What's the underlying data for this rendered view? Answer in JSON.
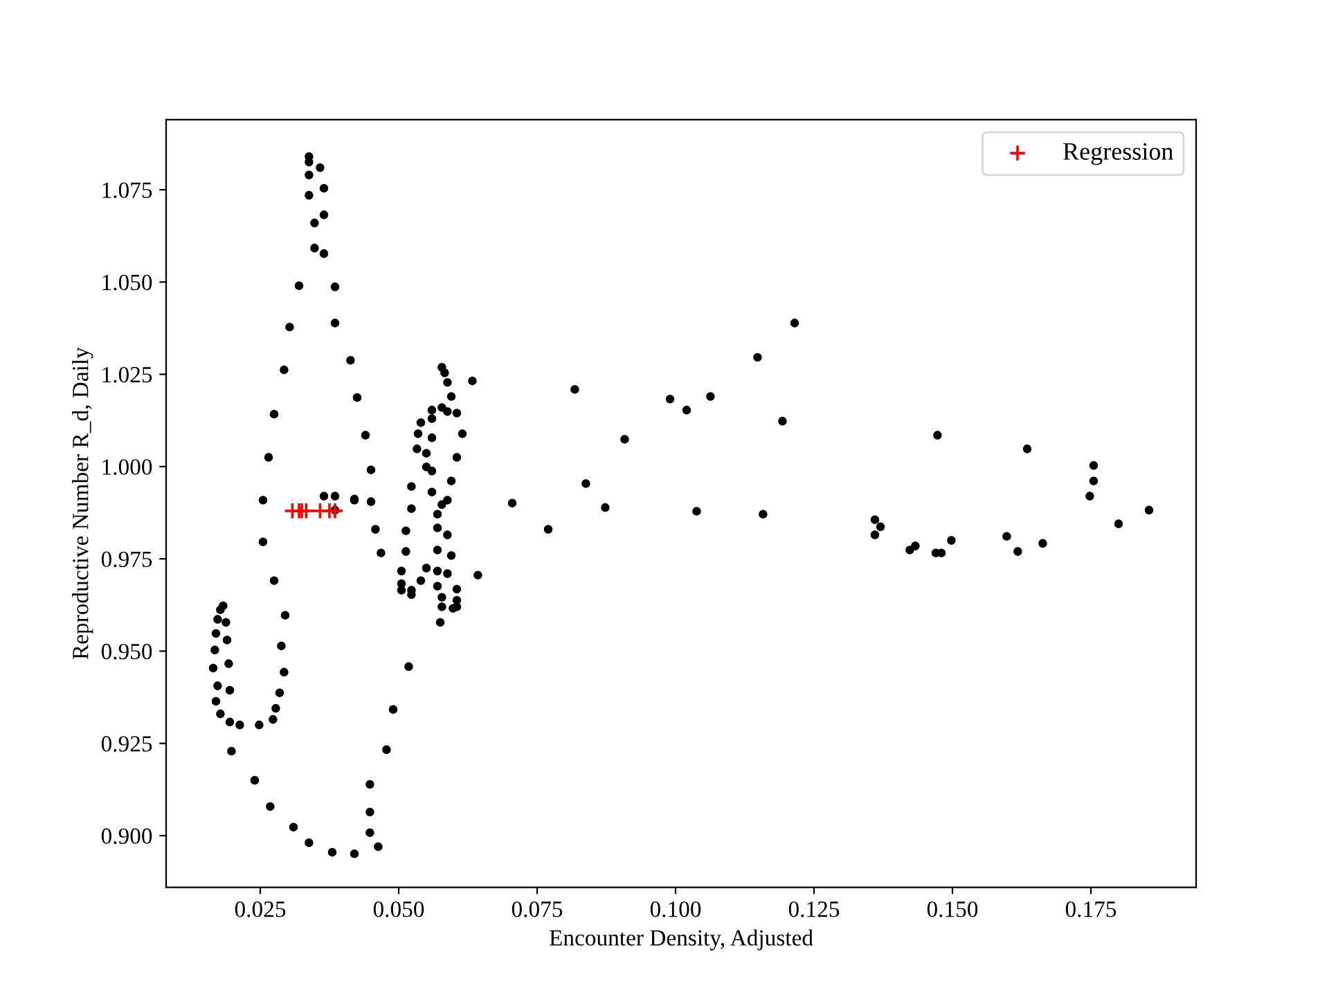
{
  "chart_data": {
    "type": "scatter",
    "xlabel": "Encounter Density, Adjusted",
    "ylabel": "Reproductive Number R_d, Daily",
    "xlim": [
      0.008,
      0.194
    ],
    "ylim": [
      0.886,
      1.094
    ],
    "xticks": [
      {
        "value": 0.025,
        "label": "0.025"
      },
      {
        "value": 0.05,
        "label": "0.050"
      },
      {
        "value": 0.075,
        "label": "0.075"
      },
      {
        "value": 0.1,
        "label": "0.100"
      },
      {
        "value": 0.125,
        "label": "0.125"
      },
      {
        "value": 0.15,
        "label": "0.150"
      },
      {
        "value": 0.175,
        "label": "0.175"
      }
    ],
    "yticks": [
      {
        "value": 0.9,
        "label": "0.900"
      },
      {
        "value": 0.925,
        "label": "0.925"
      },
      {
        "value": 0.95,
        "label": "0.950"
      },
      {
        "value": 0.975,
        "label": "0.975"
      },
      {
        "value": 1.0,
        "label": "1.000"
      },
      {
        "value": 1.025,
        "label": "1.025"
      },
      {
        "value": 1.05,
        "label": "1.050"
      },
      {
        "value": 1.075,
        "label": "1.075"
      }
    ],
    "grid": false,
    "legend": "top right",
    "series": [
      {
        "color": "#000000",
        "marker": "circle",
        "x": [
          0.0338,
          0.0338,
          0.0358,
          0.0338,
          0.0365,
          0.0338,
          0.0365,
          0.0348,
          0.0348,
          0.0365,
          0.032,
          0.0385,
          0.0303,
          0.0385,
          0.0413,
          0.0293,
          0.0425,
          0.0275,
          0.0265,
          0.044,
          0.045,
          0.042,
          0.045,
          0.0458,
          0.0468,
          0.0505,
          0.0505,
          0.0505,
          0.0523,
          0.0523,
          0.0518,
          0.049,
          0.0478,
          0.0448,
          0.0448,
          0.0448,
          0.0463,
          0.042,
          0.0578,
          0.0583,
          0.0588,
          0.0633,
          0.0595,
          0.056,
          0.0578,
          0.0588,
          0.0605,
          0.056,
          0.054,
          0.0535,
          0.056,
          0.0615,
          0.0533,
          0.055,
          0.0605,
          0.055,
          0.056,
          0.0595,
          0.0523,
          0.056,
          0.0588,
          0.0578,
          0.0523,
          0.057,
          0.057,
          0.0588,
          0.0513,
          0.0513,
          0.057,
          0.0595,
          0.055,
          0.057,
          0.0588,
          0.0643,
          0.054,
          0.057,
          0.0605,
          0.0578,
          0.0605,
          0.0578,
          0.0598,
          0.0605,
          0.0575,
          0.0255,
          0.0365,
          0.0385,
          0.0385,
          0.042,
          0.0255,
          0.0275,
          0.0183,
          0.0178,
          0.0188,
          0.0173,
          0.017,
          0.019,
          0.0168,
          0.0165,
          0.0193,
          0.0295,
          0.0288,
          0.0293,
          0.0173,
          0.0195,
          0.0285,
          0.017,
          0.0278,
          0.0178,
          0.0195,
          0.0213,
          0.0248,
          0.0273,
          0.0198,
          0.024,
          0.0268,
          0.031,
          0.0338,
          0.038,
          0.1215,
          0.1148,
          0.0818,
          0.099,
          0.102,
          0.1063,
          0.1193,
          0.0908,
          0.0838,
          0.0705,
          0.077,
          0.0873,
          0.1038,
          0.1158,
          0.1473,
          0.1635,
          0.1755,
          0.1755,
          0.1748,
          0.1855,
          0.18,
          0.136,
          0.137,
          0.136,
          0.1423,
          0.1433,
          0.147,
          0.148,
          0.1498,
          0.1598,
          0.1618,
          0.1663
        ],
        "values": [
          1.084,
          1.0825,
          1.081,
          1.079,
          1.0754,
          1.0735,
          1.0682,
          1.066,
          1.0592,
          1.0577,
          1.049,
          1.0487,
          1.0378,
          1.0389,
          1.0288,
          1.0262,
          1.0187,
          1.0142,
          1.0025,
          1.0085,
          0.9991,
          0.9912,
          0.9905,
          0.983,
          0.9766,
          0.9717,
          0.9683,
          0.9665,
          0.9665,
          0.9653,
          0.9458,
          0.9342,
          0.9233,
          0.9139,
          0.9064,
          0.9008,
          0.897,
          0.8951,
          1.0269,
          1.0254,
          1.0228,
          1.0232,
          1.019,
          1.0153,
          1.016,
          1.0149,
          1.0145,
          1.013,
          1.0119,
          1.0089,
          1.0078,
          1.0089,
          1.0048,
          1.0036,
          1.0025,
          0.9999,
          0.9988,
          0.9961,
          0.9946,
          0.9931,
          0.9909,
          0.9897,
          0.9886,
          0.9871,
          0.9834,
          0.9815,
          0.9826,
          0.977,
          0.9774,
          0.9759,
          0.9725,
          0.9717,
          0.971,
          0.9706,
          0.9691,
          0.9676,
          0.9668,
          0.9646,
          0.9638,
          0.962,
          0.9616,
          0.962,
          0.9578,
          0.9909,
          0.992,
          0.992,
          0.9882,
          0.9909,
          0.9796,
          0.9691,
          0.9623,
          0.9612,
          0.9578,
          0.9586,
          0.9548,
          0.953,
          0.9503,
          0.9454,
          0.9466,
          0.9597,
          0.9514,
          0.9443,
          0.9406,
          0.9394,
          0.9387,
          0.9364,
          0.9345,
          0.933,
          0.9308,
          0.93,
          0.93,
          0.9315,
          0.9229,
          0.915,
          0.9079,
          0.9023,
          0.8981,
          0.8955,
          1.0389,
          1.0296,
          1.0209,
          1.0183,
          1.0153,
          1.019,
          1.0123,
          1.0074,
          0.9954,
          0.9901,
          0.983,
          0.9889,
          0.9879,
          0.9871,
          1.0085,
          1.0048,
          1.0003,
          0.9961,
          0.992,
          0.9882,
          0.9845,
          0.9856,
          0.9837,
          0.9815,
          0.9774,
          0.9785,
          0.9766,
          0.9766,
          0.98,
          0.9811,
          0.977,
          0.9792
        ]
      },
      {
        "name": "Regression",
        "color": "#ff0000",
        "marker": "cross",
        "x": [
          0.0308,
          0.032,
          0.0325,
          0.0333,
          0.0358,
          0.0375,
          0.0385
        ],
        "values": [
          0.988,
          0.988,
          0.988,
          0.988,
          0.988,
          0.988,
          0.988
        ]
      }
    ]
  }
}
